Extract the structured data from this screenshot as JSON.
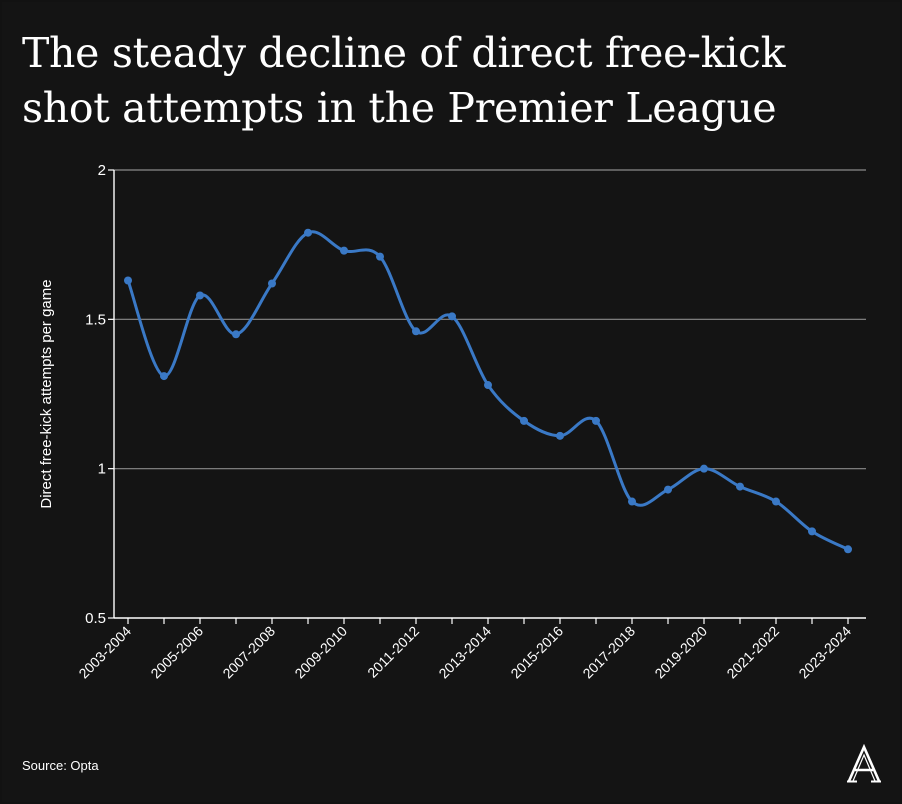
{
  "title": "The steady decline of direct free-kick shot attempts in the Premier League",
  "source": "Source: Opta",
  "brand_icon": "athletic-a-logo",
  "colors": {
    "background": "#141414",
    "line": "#3a79c6",
    "grid": "#8a8a8a",
    "text": "#ffffff"
  },
  "chart_data": {
    "type": "line",
    "title": "The steady decline of direct free-kick shot attempts in the Premier League",
    "xlabel": "",
    "ylabel": "Direct free-kick attempts per game",
    "ylim": [
      0.5,
      2
    ],
    "yticks": [
      0.5,
      1,
      1.5,
      2
    ],
    "ytick_labels": [
      "0.5",
      "1",
      "1.5",
      "2"
    ],
    "grid": true,
    "x": [
      "2003-2004",
      "2004-2005",
      "2005-2006",
      "2006-2007",
      "2007-2008",
      "2008-2009",
      "2009-2010",
      "2010-2011",
      "2011-2012",
      "2012-2013",
      "2013-2014",
      "2014-2015",
      "2015-2016",
      "2016-2017",
      "2017-2018",
      "2018-2019",
      "2019-2020",
      "2020-2021",
      "2021-2022",
      "2022-2023",
      "2023-2024"
    ],
    "x_tick_labels": [
      "2003-2004",
      "2005-2006",
      "2007-2008",
      "2009-2010",
      "2011-2012",
      "2013-2014",
      "2015-2016",
      "2017-2018",
      "2019-2020",
      "2021-2022",
      "2023-2024"
    ],
    "series": [
      {
        "name": "Direct free-kick attempts per game",
        "values": [
          1.63,
          1.31,
          1.58,
          1.45,
          1.62,
          1.79,
          1.73,
          1.71,
          1.46,
          1.51,
          1.28,
          1.16,
          1.11,
          1.16,
          0.89,
          0.93,
          1.0,
          0.94,
          0.89,
          0.79,
          0.73
        ]
      }
    ]
  }
}
